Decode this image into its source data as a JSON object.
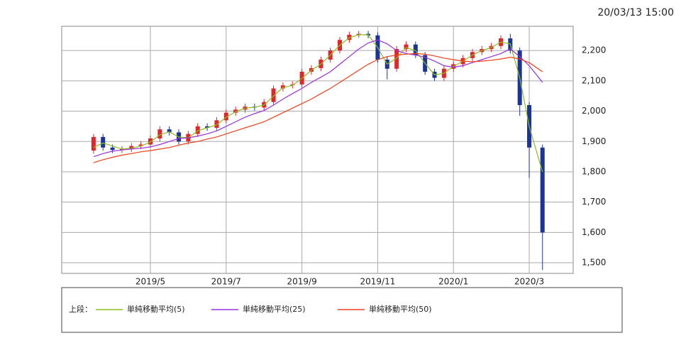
{
  "chart_data": {
    "type": "candlestick",
    "timestamp": "20/03/13 15:00",
    "legend_title": "上段：",
    "x": [
      3.5,
      3.75,
      4.0,
      4.25,
      4.5,
      4.75,
      5.0,
      5.25,
      5.5,
      5.75,
      6.0,
      6.25,
      6.5,
      6.75,
      7.0,
      7.25,
      7.5,
      7.75,
      8.0,
      8.25,
      8.5,
      8.75,
      9.0,
      9.25,
      9.5,
      9.75,
      10.0,
      10.25,
      10.5,
      10.75,
      11.0,
      11.25,
      11.5,
      11.75,
      12.0,
      12.25,
      12.5,
      12.75,
      13.0,
      13.25,
      13.5,
      13.75,
      14.0,
      14.25,
      14.5,
      14.75,
      15.0,
      15.35
    ],
    "open": [
      1870,
      1915,
      1880,
      1872,
      1875,
      1885,
      1890,
      1910,
      1940,
      1930,
      1900,
      1925,
      1950,
      1945,
      1970,
      1995,
      2005,
      2015,
      2012,
      2030,
      2075,
      2085,
      2088,
      2130,
      2142,
      2170,
      2200,
      2235,
      2252,
      2255,
      2250,
      2170,
      2140,
      2205,
      2220,
      2185,
      2130,
      2110,
      2140,
      2155,
      2175,
      2195,
      2205,
      2215,
      2240,
      2200,
      2020,
      1880
    ],
    "high": [
      1925,
      1925,
      1890,
      1885,
      1895,
      1900,
      1920,
      1950,
      1950,
      1940,
      1935,
      1960,
      1960,
      1980,
      2005,
      2015,
      2025,
      2025,
      2040,
      2085,
      2095,
      2098,
      2140,
      2152,
      2180,
      2210,
      2245,
      2262,
      2265,
      2265,
      2260,
      2180,
      2215,
      2230,
      2230,
      2195,
      2140,
      2150,
      2165,
      2185,
      2205,
      2215,
      2225,
      2250,
      2255,
      2210,
      2030,
      1890
    ],
    "low": [
      1860,
      1870,
      1862,
      1862,
      1865,
      1875,
      1880,
      1900,
      1920,
      1890,
      1890,
      1915,
      1935,
      1935,
      1960,
      1985,
      1995,
      2002,
      2002,
      2020,
      2065,
      2075,
      2078,
      2120,
      2132,
      2160,
      2190,
      2225,
      2242,
      2240,
      2160,
      2105,
      2130,
      2195,
      2175,
      2120,
      2100,
      2100,
      2130,
      2145,
      2165,
      2185,
      2195,
      2205,
      2190,
      1985,
      1780,
      1476
    ],
    "close": [
      1915,
      1880,
      1872,
      1875,
      1885,
      1890,
      1910,
      1940,
      1930,
      1900,
      1925,
      1950,
      1945,
      1970,
      1995,
      2005,
      2015,
      2012,
      2030,
      2075,
      2085,
      2088,
      2130,
      2142,
      2170,
      2200,
      2235,
      2252,
      2255,
      2250,
      2170,
      2140,
      2205,
      2220,
      2185,
      2130,
      2110,
      2140,
      2155,
      2175,
      2195,
      2205,
      2215,
      2240,
      2200,
      2020,
      1880,
      1600
    ],
    "up_color": "#e0262b",
    "down_color": "#1a3596",
    "series": [
      {
        "name": "単純移動平均(5)",
        "color": "#8cbf1e",
        "values": [
          1880,
          1895,
          1885,
          1875,
          1878,
          1885,
          1898,
          1922,
          1932,
          1915,
          1912,
          1935,
          1945,
          1955,
          1980,
          1998,
          2010,
          2013,
          2020,
          2050,
          2078,
          2085,
          2108,
          2135,
          2155,
          2185,
          2218,
          2242,
          2252,
          2252,
          2210,
          2155,
          2175,
          2210,
          2200,
          2158,
          2120,
          2125,
          2148,
          2165,
          2185,
          2200,
          2210,
          2228,
          2222,
          2110,
          1950,
          1800
        ]
      },
      {
        "name": "単純移動平均(25)",
        "color": "#9b30e0",
        "values": [
          1850,
          1860,
          1868,
          1872,
          1875,
          1878,
          1882,
          1890,
          1900,
          1910,
          1912,
          1918,
          1925,
          1935,
          1950,
          1965,
          1980,
          1992,
          2002,
          2020,
          2040,
          2058,
          2075,
          2095,
          2112,
          2130,
          2155,
          2180,
          2205,
          2225,
          2235,
          2222,
          2200,
          2190,
          2185,
          2178,
          2165,
          2150,
          2145,
          2150,
          2160,
          2170,
          2180,
          2190,
          2205,
          2180,
          2150,
          2095
        ]
      },
      {
        "name": "単純移動平均(50)",
        "color": "#f0401a",
        "values": [
          1830,
          1840,
          1848,
          1855,
          1860,
          1866,
          1870,
          1875,
          1880,
          1888,
          1895,
          1900,
          1908,
          1915,
          1925,
          1935,
          1945,
          1955,
          1965,
          1980,
          1995,
          2010,
          2025,
          2040,
          2058,
          2075,
          2095,
          2115,
          2135,
          2155,
          2170,
          2180,
          2185,
          2188,
          2190,
          2188,
          2182,
          2175,
          2170,
          2165,
          2163,
          2165,
          2168,
          2172,
          2178,
          2172,
          2160,
          2130
        ]
      }
    ],
    "xlim": [
      2.66,
      16.16
    ],
    "xticks": [
      {
        "value": 5,
        "label": "2019/5"
      },
      {
        "value": 7,
        "label": "2019/7"
      },
      {
        "value": 9,
        "label": "2019/9"
      },
      {
        "value": 11,
        "label": "2019/11"
      },
      {
        "value": 13,
        "label": "2020/1"
      },
      {
        "value": 15,
        "label": "2020/3"
      }
    ],
    "ylim": [
      1465,
      2280
    ],
    "yticks": [
      {
        "value": 1500,
        "label": "1,500"
      },
      {
        "value": 1600,
        "label": "1,600"
      },
      {
        "value": 1700,
        "label": "1,700"
      },
      {
        "value": 1800,
        "label": "1,800"
      },
      {
        "value": 1900,
        "label": "1,900"
      },
      {
        "value": 2000,
        "label": "2,000"
      },
      {
        "value": 2100,
        "label": "2,100"
      },
      {
        "value": 2200,
        "label": "2,200"
      }
    ],
    "grid": true
  }
}
